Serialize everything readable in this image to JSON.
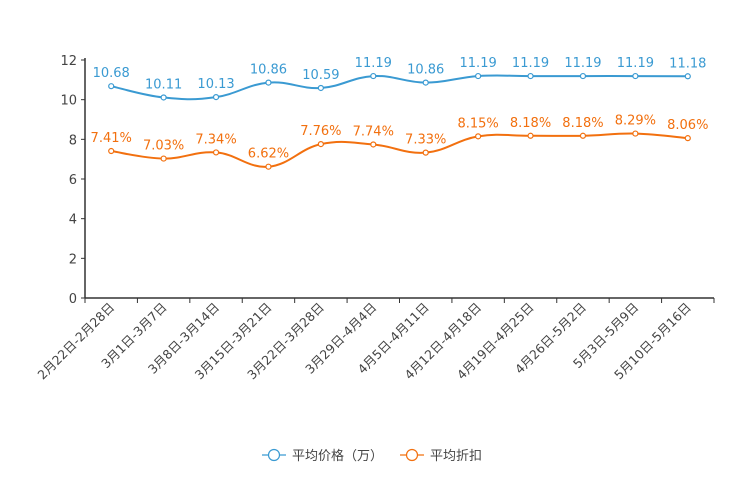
{
  "chart_data": {
    "type": "line",
    "categories": [
      "2月22日-2月28日",
      "3月1日-3月7日",
      "3月8日-3月14日",
      "3月15日-3月21日",
      "3月22日-3月28日",
      "3月29日-4月4日",
      "4月5日-4月11日",
      "4月12日-4月18日",
      "4月19日-4月25日",
      "4月26日-5月2日",
      "5月3日-5月9日",
      "5月10日-5月16日"
    ],
    "series": [
      {
        "name": "平均价格（万）",
        "color": "#3a9ad2",
        "values": [
          10.68,
          10.11,
          10.13,
          10.86,
          10.59,
          11.19,
          10.86,
          11.19,
          11.19,
          11.19,
          11.19,
          11.18
        ],
        "labels": [
          "10.68",
          "10.11",
          "10.13",
          "10.86",
          "10.59",
          "11.19",
          "10.86",
          "11.19",
          "11.19",
          "11.19",
          "11.19",
          "11.18"
        ]
      },
      {
        "name": "平均折扣",
        "color": "#f2700f",
        "values": [
          7.41,
          7.03,
          7.34,
          6.62,
          7.76,
          7.74,
          7.33,
          8.15,
          8.18,
          8.18,
          8.29,
          8.06
        ],
        "labels": [
          "7.41%",
          "7.03%",
          "7.34%",
          "6.62%",
          "7.76%",
          "7.74%",
          "7.33%",
          "8.15%",
          "8.18%",
          "8.18%",
          "8.29%",
          "8.06%"
        ]
      }
    ],
    "yticks": [
      0,
      2,
      4,
      6,
      8,
      10,
      12
    ],
    "ylim": [
      0,
      12
    ],
    "title": "",
    "xlabel": "",
    "ylabel": "",
    "grid": false,
    "legend": "bottom-center"
  }
}
